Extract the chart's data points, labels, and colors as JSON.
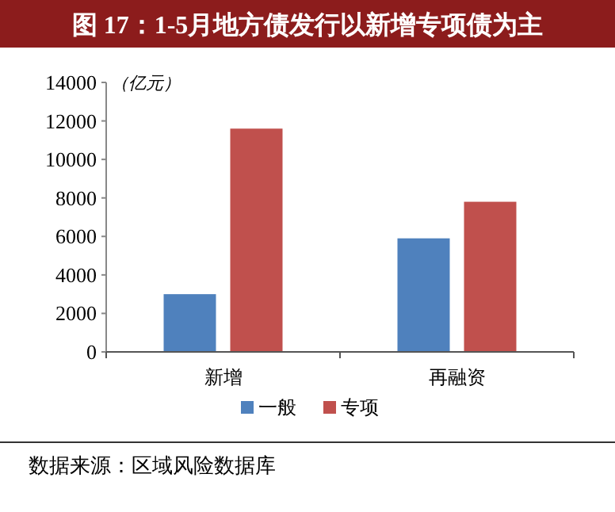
{
  "chart_data": {
    "type": "bar",
    "title": "图 17：1-5月地方债发行以新增专项债为主",
    "ylabel": "（亿元）",
    "categories": [
      "新增",
      "再融资"
    ],
    "series": [
      {
        "name": "一般",
        "color": "#4f81bd",
        "values": [
          3000,
          5900
        ]
      },
      {
        "name": "专项",
        "color": "#c0504d",
        "values": [
          11600,
          7800
        ]
      }
    ],
    "ylim": [
      0,
      14000
    ],
    "yticks": [
      0,
      2000,
      4000,
      6000,
      8000,
      10000,
      12000,
      14000
    ],
    "grid": false,
    "legend": "bottom",
    "annotations": [
      "数据来源：区域风险数据库"
    ]
  }
}
